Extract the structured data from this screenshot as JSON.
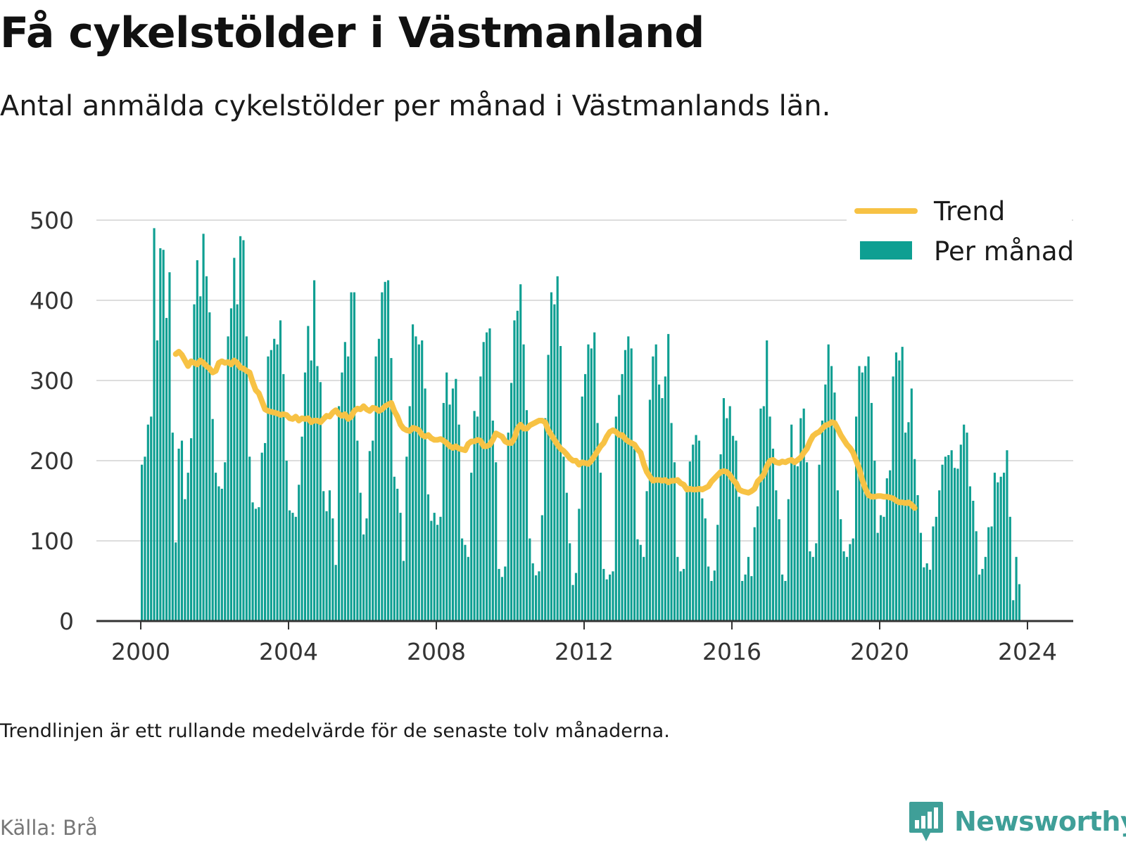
{
  "title": "Få cykelstölder i Västmanland",
  "subtitle": "Antal anmälda cykelstölder per månad i Västmanlands län.",
  "note": "Trendlinjen är ett rullande medelvärde för de senaste tolv månaderna.",
  "source": "Källa: Brå",
  "brand": {
    "name": "Newsworthy",
    "icon": "newsworthy-logo-icon"
  },
  "colors": {
    "bars": "#0e9f92",
    "trend": "#f7c244",
    "grid": "#dddddd",
    "axis": "#333333",
    "brand": "#3f9f98"
  },
  "chart_data": {
    "type": "bar",
    "title": "Få cykelstölder i Västmanland",
    "xlabel": "",
    "ylabel": "",
    "ylim": [
      0,
      500
    ],
    "yticks": [
      0,
      100,
      200,
      300,
      400,
      500
    ],
    "xticks": [
      "2000",
      "2004",
      "2008",
      "2012",
      "2016",
      "2020",
      "2024"
    ],
    "x_start": "2000-01",
    "x_end": "2024-01",
    "grid": true,
    "legend_position": "top-right",
    "series": [
      {
        "name": "Per månad",
        "type": "bar",
        "color": "#0e9f92",
        "values": [
          195,
          205,
          245,
          255,
          490,
          350,
          465,
          463,
          378,
          435,
          235,
          98,
          215,
          225,
          152,
          185,
          228,
          395,
          450,
          405,
          483,
          430,
          385,
          252,
          185,
          168,
          165,
          198,
          355,
          390,
          453,
          395,
          480,
          475,
          355,
          205,
          148,
          140,
          142,
          210,
          222,
          330,
          338,
          352,
          345,
          375,
          308,
          200,
          138,
          135,
          130,
          170,
          230,
          310,
          368,
          325,
          425,
          318,
          298,
          162,
          137,
          163,
          128,
          70,
          268,
          310,
          348,
          330,
          410,
          410,
          225,
          160,
          108,
          128,
          212,
          225,
          330,
          352,
          410,
          423,
          425,
          328,
          180,
          165,
          135,
          75,
          205,
          268,
          370,
          355,
          345,
          350,
          290,
          158,
          125,
          135,
          120,
          130,
          272,
          310,
          270,
          290,
          302,
          245,
          103,
          95,
          80,
          185,
          262,
          255,
          305,
          348,
          360,
          365,
          250,
          198,
          65,
          55,
          68,
          235,
          297,
          375,
          387,
          420,
          345,
          263,
          103,
          72,
          57,
          62,
          132,
          253,
          332,
          410,
          395,
          430,
          343,
          205,
          160,
          97,
          45,
          60,
          140,
          280,
          308,
          345,
          340,
          360,
          247,
          185,
          65,
          52,
          58,
          62,
          255,
          282,
          308,
          338,
          355,
          340,
          215,
          102,
          95,
          80,
          162,
          276,
          330,
          345,
          295,
          278,
          305,
          358,
          247,
          198,
          80,
          62,
          65,
          168,
          199,
          220,
          232,
          225,
          153,
          128,
          68,
          50,
          63,
          120,
          208,
          278,
          253,
          268,
          231,
          225,
          155,
          50,
          58,
          80,
          56,
          117,
          143,
          265,
          268,
          350,
          255,
          215,
          163,
          127,
          58,
          50,
          152,
          245,
          198,
          193,
          253,
          265,
          198,
          87,
          80,
          97,
          195,
          250,
          295,
          345,
          318,
          285,
          163,
          127,
          87,
          80,
          96,
          103,
          255,
          318,
          310,
          318,
          330,
          272,
          200,
          110,
          132,
          130,
          178,
          188,
          305,
          335,
          325,
          342,
          235,
          248,
          290,
          202,
          157,
          110,
          67,
          72,
          64,
          118,
          130,
          163,
          195,
          205,
          207,
          213,
          191,
          190,
          220,
          245,
          235,
          168,
          150,
          112,
          58,
          65,
          80,
          117,
          118,
          185,
          173,
          180,
          185,
          213,
          130,
          26,
          80,
          46,
          0,
          0
        ]
      },
      {
        "name": "Trend",
        "type": "line",
        "color": "#f7c244",
        "values": [
          null,
          null,
          null,
          null,
          null,
          null,
          null,
          null,
          null,
          null,
          null,
          333,
          336,
          332,
          325,
          318,
          324,
          322,
          320,
          325,
          322,
          318,
          315,
          310,
          312,
          322,
          324,
          322,
          323,
          320,
          325,
          322,
          316,
          315,
          312,
          310,
          298,
          288,
          284,
          274,
          264,
          262,
          261,
          260,
          259,
          257,
          258,
          257,
          253,
          252,
          255,
          250,
          253,
          252,
          253,
          248,
          250,
          250,
          248,
          252,
          256,
          255,
          260,
          263,
          258,
          256,
          258,
          252,
          255,
          262,
          265,
          264,
          268,
          264,
          262,
          266,
          265,
          262,
          264,
          268,
          270,
          272,
          262,
          255,
          245,
          240,
          238,
          237,
          241,
          240,
          238,
          232,
          230,
          232,
          228,
          226,
          226,
          227,
          225,
          222,
          218,
          216,
          218,
          215,
          214,
          213,
          221,
          224,
          224,
          226,
          225,
          218,
          218,
          220,
          226,
          234,
          232,
          230,
          224,
          222,
          222,
          228,
          240,
          245,
          240,
          240,
          244,
          246,
          248,
          250,
          250,
          248,
          238,
          232,
          226,
          220,
          215,
          212,
          208,
          203,
          200,
          200,
          195,
          198,
          197,
          196,
          200,
          206,
          212,
          218,
          222,
          230,
          236,
          238,
          236,
          232,
          232,
          227,
          224,
          222,
          220,
          214,
          210,
          196,
          186,
          180,
          175,
          176,
          176,
          175,
          176,
          173,
          175,
          175,
          176,
          172,
          170,
          164,
          165,
          164,
          164,
          165,
          164,
          166,
          168,
          174,
          178,
          182,
          186,
          187,
          186,
          182,
          176,
          172,
          164,
          162,
          161,
          160,
          162,
          165,
          174,
          178,
          183,
          193,
          200,
          201,
          198,
          197,
          199,
          198,
          200,
          201,
          198,
          201,
          204,
          210,
          215,
          224,
          231,
          234,
          236,
          240,
          244,
          245,
          248,
          247,
          240,
          232,
          226,
          220,
          216,
          210,
          200,
          190,
          176,
          165,
          157,
          155,
          155,
          156,
          156,
          155,
          155,
          154,
          153,
          150,
          148,
          148,
          147,
          148,
          145,
          141
        ]
      }
    ]
  }
}
